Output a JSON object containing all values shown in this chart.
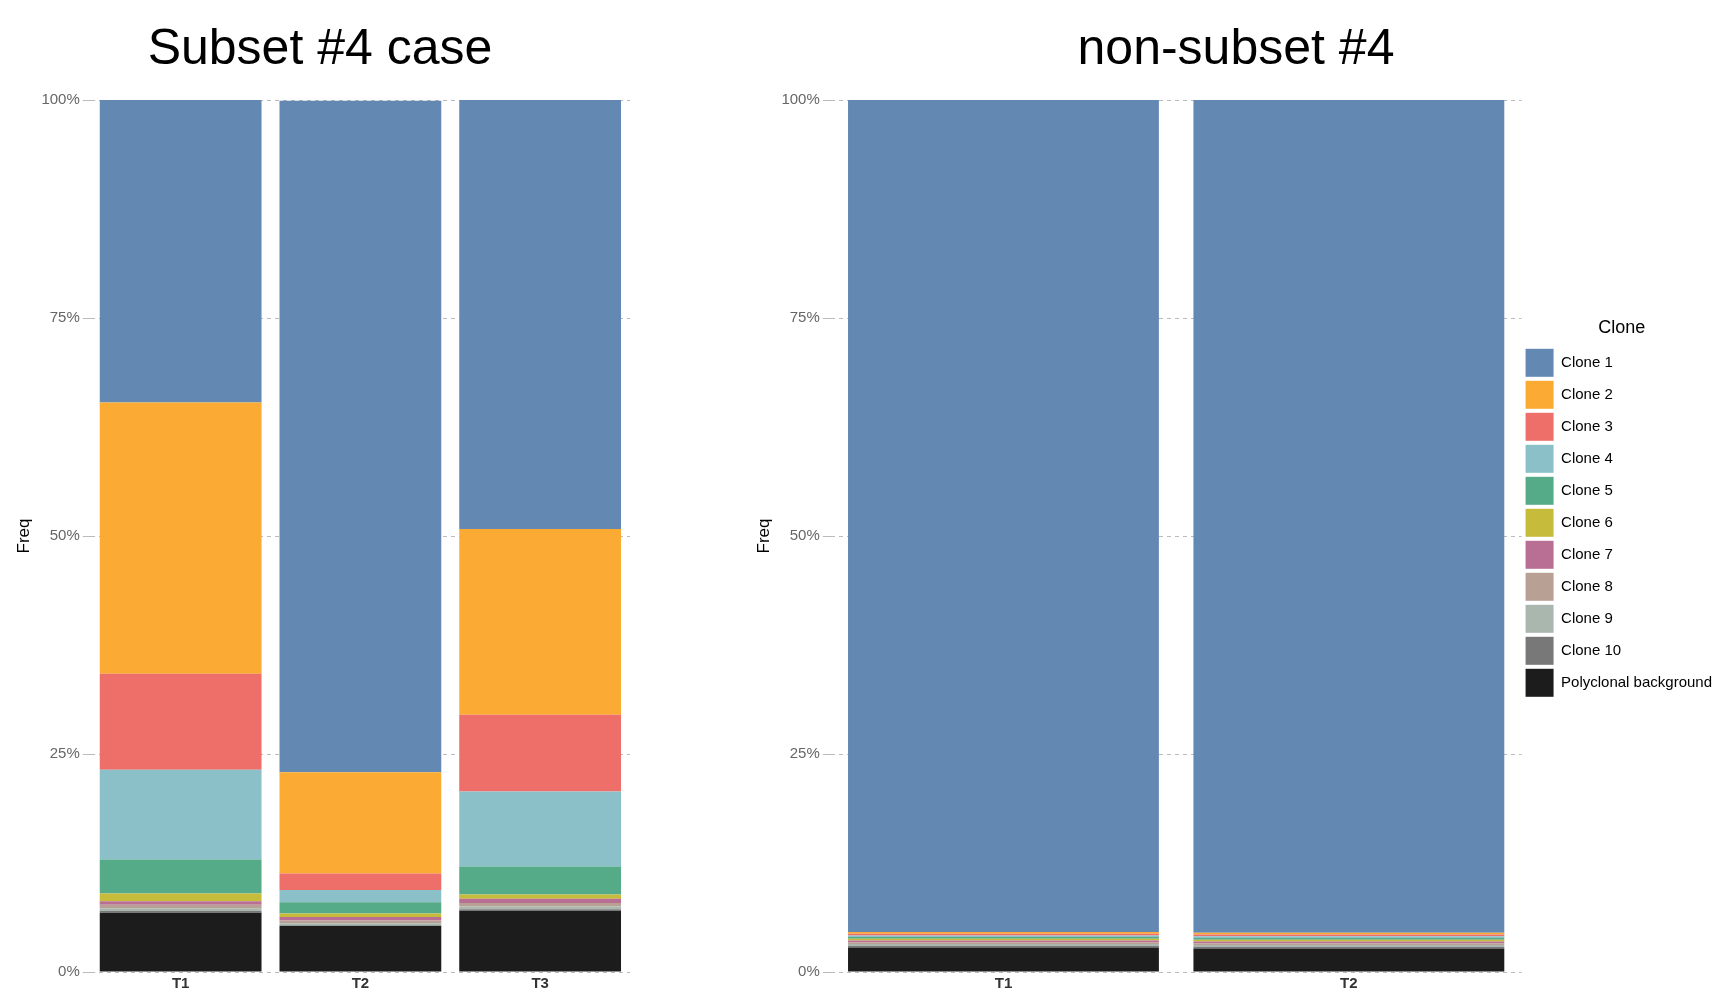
{
  "chart_data": [
    {
      "type": "bar",
      "title": "Subset #4 case",
      "ylabel": "Freq",
      "categories": [
        "T1",
        "T2",
        "T3"
      ],
      "stacked": true,
      "grid": "y",
      "legend": false,
      "ylim": [
        0,
        100
      ],
      "yticks": [
        {
          "value": 0,
          "label": "0%"
        },
        {
          "value": 25,
          "label": "25%"
        },
        {
          "value": 50,
          "label": "50%"
        },
        {
          "value": 75,
          "label": "75%"
        },
        {
          "value": 100,
          "label": "100%"
        }
      ],
      "series": [
        {
          "color": "#1c1c1c",
          "values": [
            6.8,
            5.3,
            7.0
          ]
        },
        {
          "color": "#787878",
          "values": [
            0.2,
            null,
            0.2
          ]
        },
        {
          "color": "#a9b7ae",
          "values": [
            0.3,
            0.3,
            0.3
          ]
        },
        {
          "color": "#b9a095",
          "values": [
            0.4,
            0.3,
            0.4
          ]
        },
        {
          "color": "#b96e94",
          "values": [
            0.4,
            0.4,
            0.5
          ]
        },
        {
          "color": "#c6bb3b",
          "values": [
            0.9,
            0.4,
            0.5
          ]
        },
        {
          "color": "#55ab88",
          "values": [
            3.9,
            1.3,
            3.2
          ]
        },
        {
          "color": "#8cc0c9",
          "values": [
            10.3,
            1.4,
            8.6
          ]
        },
        {
          "color": "#ee6e69",
          "values": [
            11.0,
            1.9,
            8.8
          ]
        },
        {
          "color": "#fbab33",
          "values": [
            31.1,
            11.6,
            21.3
          ]
        },
        {
          "color": "#6389b3",
          "values": [
            34.7,
            77.0,
            49.2
          ]
        }
      ]
    },
    {
      "type": "bar",
      "title": "non-subset #4",
      "ylabel": "Freq",
      "categories": [
        "T1",
        "T2"
      ],
      "stacked": true,
      "grid": "y",
      "legend": "right",
      "legend_title": "Clone",
      "ylim": [
        0,
        100
      ],
      "yticks": [
        {
          "value": 0,
          "label": "0%"
        },
        {
          "value": 25,
          "label": "25%"
        },
        {
          "value": 50,
          "label": "50%"
        },
        {
          "value": 75,
          "label": "75%"
        },
        {
          "value": 100,
          "label": "100%"
        }
      ],
      "series": [
        {
          "name": "Polyclonal background",
          "color": "#1c1c1c",
          "values": [
            2.8,
            2.7
          ]
        },
        {
          "name": "Clone 10",
          "color": "#787878",
          "values": [
            0.2,
            0.2
          ]
        },
        {
          "name": "Clone 9",
          "color": "#a9b7ae",
          "values": [
            0.2,
            0.2
          ]
        },
        {
          "name": "Clone 8",
          "color": "#b9a095",
          "values": [
            0.2,
            0.2
          ]
        },
        {
          "name": "Clone 7",
          "color": "#b96e94",
          "values": [
            0.2,
            0.2
          ]
        },
        {
          "name": "Clone 6",
          "color": "#c6bb3b",
          "values": [
            0.2,
            0.2
          ]
        },
        {
          "name": "Clone 5",
          "color": "#55ab88",
          "values": [
            0.2,
            0.2
          ]
        },
        {
          "name": "Clone 4",
          "color": "#8cc0c9",
          "values": [
            0.2,
            0.2
          ]
        },
        {
          "name": "Clone 3",
          "color": "#ee6e69",
          "values": [
            0.2,
            0.2
          ]
        },
        {
          "name": "Clone 2",
          "color": "#fbab33",
          "values": [
            0.2,
            0.2
          ]
        },
        {
          "name": "Clone 1",
          "color": "#6389b3",
          "values": [
            95.4,
            95.5
          ]
        }
      ]
    }
  ]
}
